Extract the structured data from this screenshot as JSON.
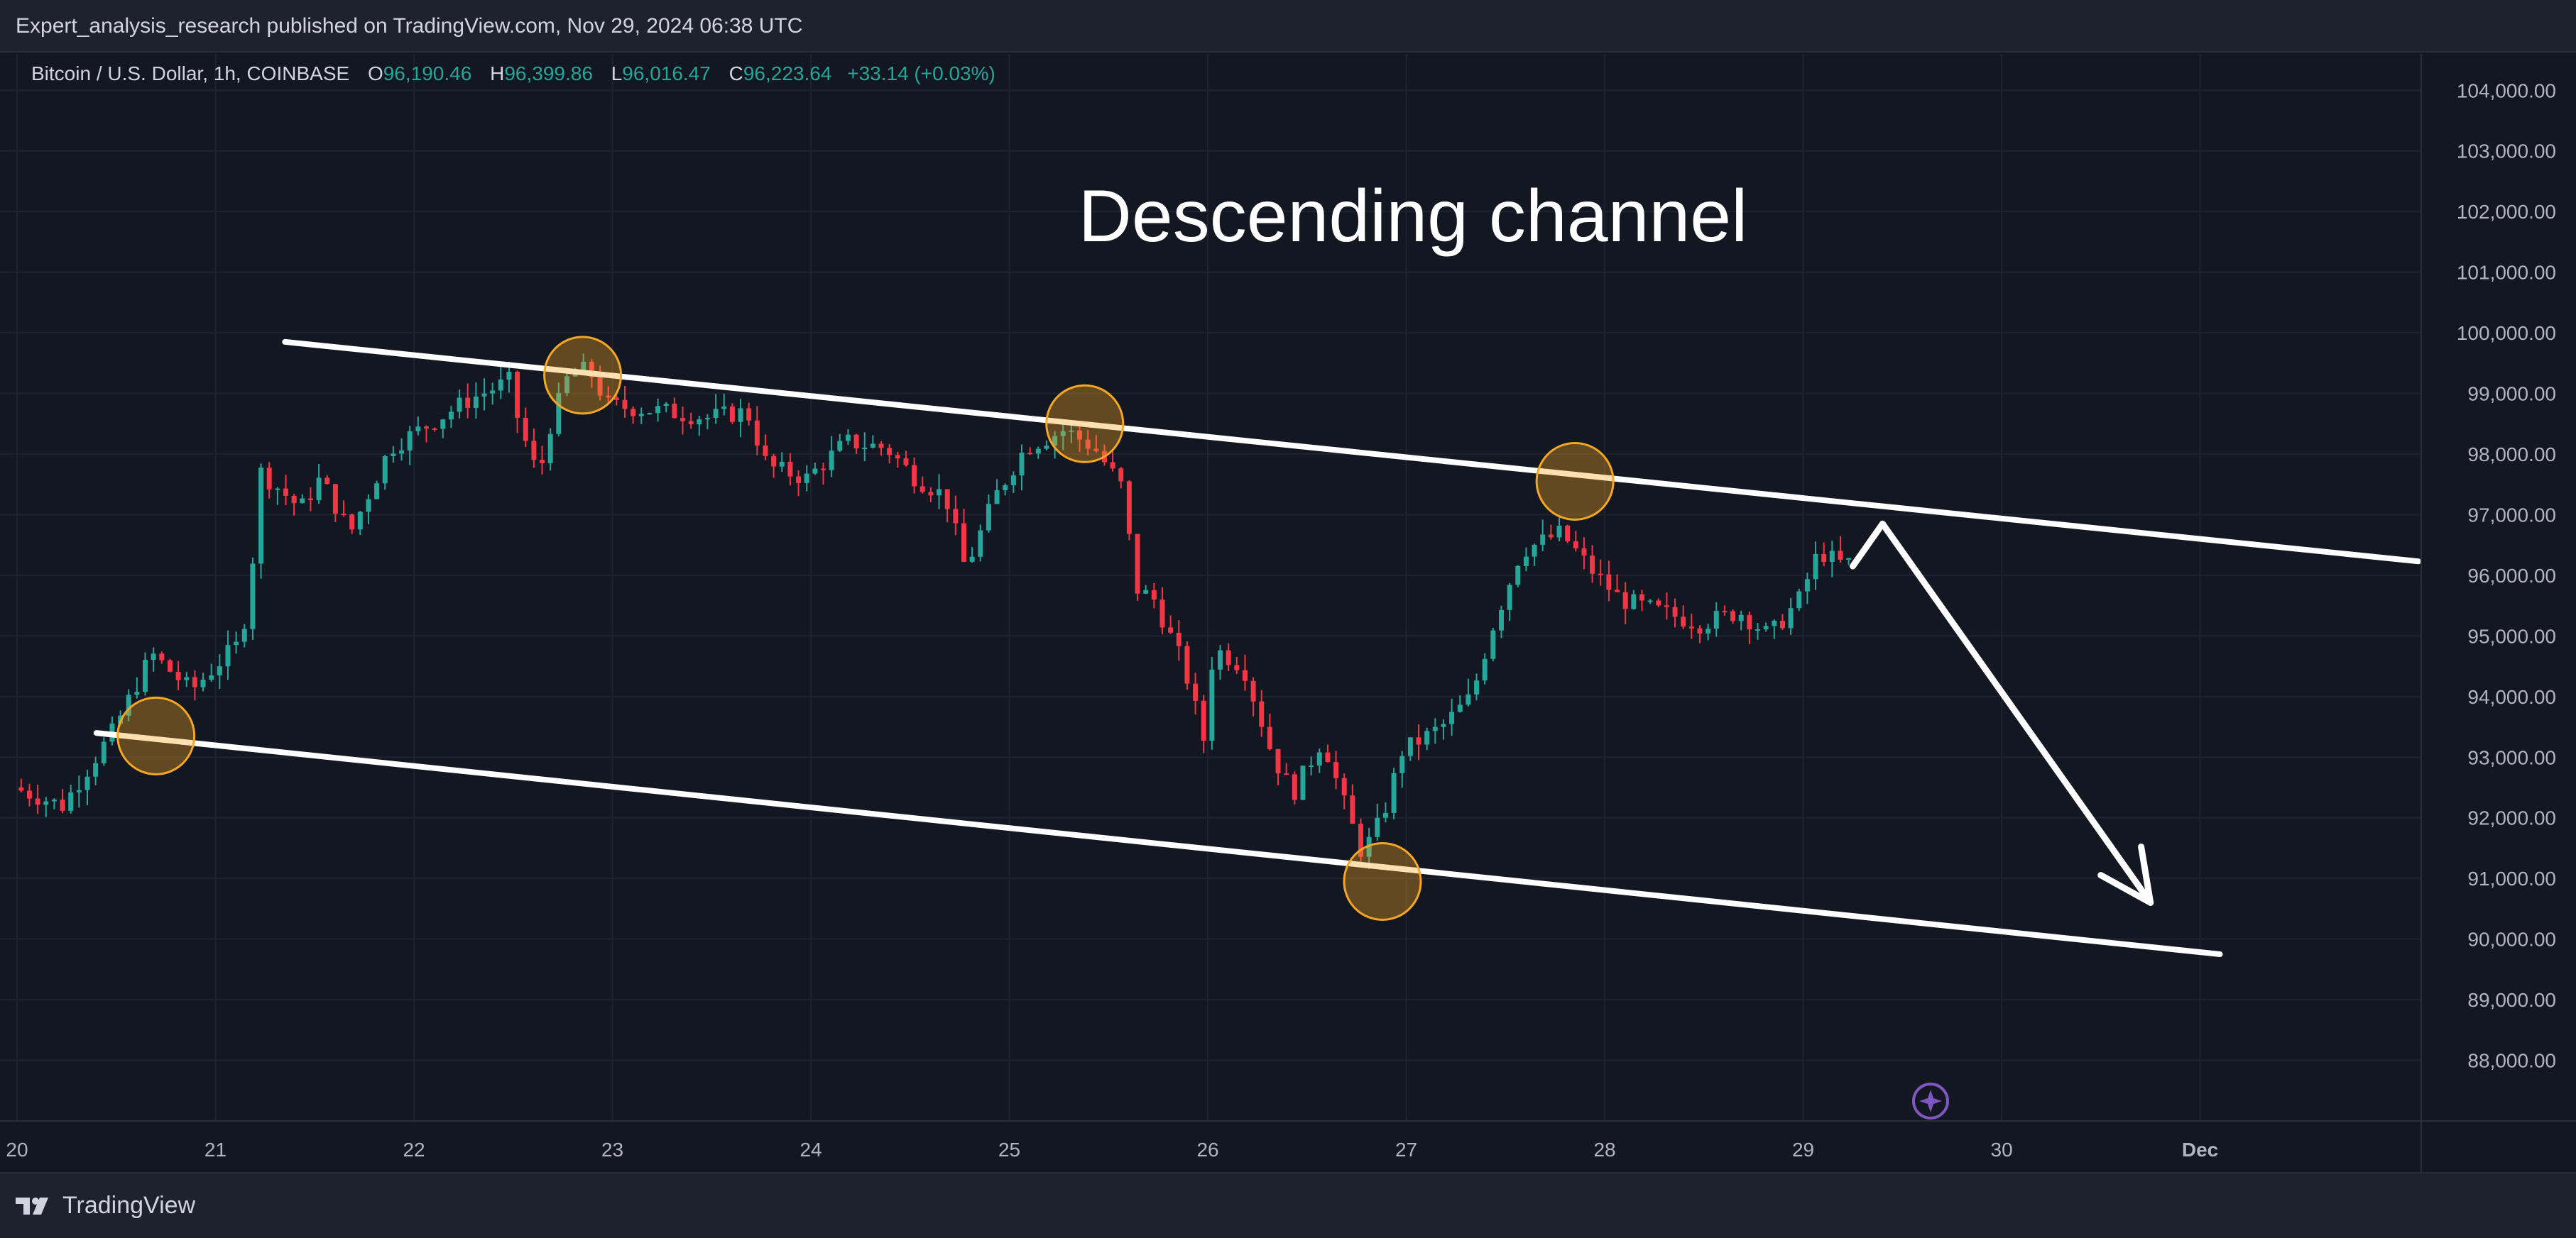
{
  "header": {
    "attribution": "Expert_analysis_research published on TradingView.com, Nov 29, 2024 06:38 UTC"
  },
  "legend": {
    "symbol": "Bitcoin / U.S. Dollar, 1h, COINBASE",
    "o_label": "O",
    "o_value": "96,190.46",
    "h_label": "H",
    "h_value": "96,399.86",
    "l_label": "L",
    "l_value": "96,016.47",
    "c_label": "C",
    "c_value": "96,223.64",
    "change": "+33.14 (+0.03%)"
  },
  "footer": {
    "brand": "TradingView"
  },
  "colors": {
    "background": "#131722",
    "up": "#26a69a",
    "down": "#f23645",
    "annotation": "#ffffff",
    "highlight": "#f5a623"
  },
  "chart_data": {
    "type": "candlestick",
    "title": "Descending channel",
    "xlabel": "",
    "ylabel": "",
    "x_ticks": [
      {
        "x": 20.0,
        "label": "20"
      },
      {
        "x": 21.0,
        "label": "21"
      },
      {
        "x": 22.0,
        "label": "22"
      },
      {
        "x": 23.0,
        "label": "23"
      },
      {
        "x": 24.0,
        "label": "24"
      },
      {
        "x": 25.0,
        "label": "25"
      },
      {
        "x": 26.0,
        "label": "26"
      },
      {
        "x": 27.0,
        "label": "27"
      },
      {
        "x": 28.0,
        "label": "28"
      },
      {
        "x": 29.0,
        "label": "29"
      },
      {
        "x": 30.0,
        "label": "30"
      },
      {
        "x": 31.0,
        "label": "Dec"
      }
    ],
    "y_ticks": [
      {
        "y": 88000,
        "label": "88,000.00"
      },
      {
        "y": 89000,
        "label": "89,000.00"
      },
      {
        "y": 90000,
        "label": "90,000.00"
      },
      {
        "y": 91000,
        "label": "91,000.00"
      },
      {
        "y": 92000,
        "label": "92,000.00"
      },
      {
        "y": 93000,
        "label": "93,000.00"
      },
      {
        "y": 94000,
        "label": "94,000.00"
      },
      {
        "y": 95000,
        "label": "95,000.00"
      },
      {
        "y": 96000,
        "label": "96,000.00"
      },
      {
        "y": 97000,
        "label": "97,000.00"
      },
      {
        "y": 98000,
        "label": "98,000.00"
      },
      {
        "y": 99000,
        "label": "99,000.00"
      },
      {
        "y": 100000,
        "label": "100,000.00"
      },
      {
        "y": 101000,
        "label": "101,000.00"
      },
      {
        "y": 102000,
        "label": "102,000.00"
      },
      {
        "y": 103000,
        "label": "103,000.00"
      },
      {
        "y": 104000,
        "label": "104,000.00"
      }
    ],
    "xlim": [
      20.0,
      32.2
    ],
    "ylim": [
      87000,
      104600
    ],
    "grid": true,
    "path_points": [
      [
        20.0,
        92500
      ],
      [
        20.25,
        92200
      ],
      [
        20.5,
        93400
      ],
      [
        20.7,
        94700
      ],
      [
        20.9,
        94100
      ],
      [
        21.05,
        94600
      ],
      [
        21.15,
        94900
      ],
      [
        21.2,
        96000
      ],
      [
        21.25,
        97700
      ],
      [
        21.45,
        97100
      ],
      [
        21.55,
        97600
      ],
      [
        21.7,
        96700
      ],
      [
        21.8,
        97400
      ],
      [
        21.9,
        98100
      ],
      [
        22.1,
        98500
      ],
      [
        22.3,
        98900
      ],
      [
        22.5,
        99200
      ],
      [
        22.55,
        98500
      ],
      [
        22.65,
        97600
      ],
      [
        22.7,
        98400
      ],
      [
        22.8,
        99300
      ],
      [
        22.9,
        99400
      ],
      [
        23.0,
        98800
      ],
      [
        23.3,
        98700
      ],
      [
        23.5,
        98600
      ],
      [
        23.7,
        98700
      ],
      [
        23.8,
        97800
      ],
      [
        24.0,
        97600
      ],
      [
        24.2,
        98200
      ],
      [
        24.4,
        98100
      ],
      [
        24.55,
        97600
      ],
      [
        24.7,
        97300
      ],
      [
        24.8,
        96100
      ],
      [
        24.95,
        97300
      ],
      [
        25.1,
        98100
      ],
      [
        25.3,
        98400
      ],
      [
        25.45,
        98100
      ],
      [
        25.6,
        97400
      ],
      [
        25.65,
        95800
      ],
      [
        25.75,
        95600
      ],
      [
        25.9,
        94500
      ],
      [
        26.0,
        93300
      ],
      [
        26.05,
        94800
      ],
      [
        26.2,
        94500
      ],
      [
        26.35,
        93000
      ],
      [
        26.45,
        92400
      ],
      [
        26.6,
        93300
      ],
      [
        26.7,
        92300
      ],
      [
        26.8,
        91400
      ],
      [
        26.9,
        92000
      ],
      [
        27.0,
        93100
      ],
      [
        27.2,
        93500
      ],
      [
        27.35,
        94000
      ],
      [
        27.45,
        95100
      ],
      [
        27.6,
        96400
      ],
      [
        27.8,
        96700
      ],
      [
        27.95,
        96100
      ],
      [
        28.1,
        95600
      ],
      [
        28.3,
        95400
      ],
      [
        28.5,
        95200
      ],
      [
        28.7,
        95400
      ],
      [
        28.85,
        95000
      ],
      [
        29.0,
        95600
      ],
      [
        29.1,
        96400
      ],
      [
        29.2,
        96200
      ]
    ],
    "candle_range": [
      20.0,
      29.25
    ],
    "channel_lines": [
      {
        "name": "upper",
        "from": [
          21.35,
          99850
        ],
        "to": [
          32.1,
          96230
        ]
      },
      {
        "name": "lower",
        "from": [
          20.4,
          93400
        ],
        "to": [
          31.1,
          89750
        ]
      }
    ],
    "touch_points": [
      {
        "x": 20.7,
        "y": 93350
      },
      {
        "x": 22.85,
        "y": 99300
      },
      {
        "x": 25.38,
        "y": 98500
      },
      {
        "x": 27.85,
        "y": 97550
      },
      {
        "x": 26.88,
        "y": 90950
      }
    ],
    "projection": [
      [
        29.25,
        96150
      ],
      [
        29.4,
        96850
      ],
      [
        30.75,
        90600
      ]
    ]
  }
}
